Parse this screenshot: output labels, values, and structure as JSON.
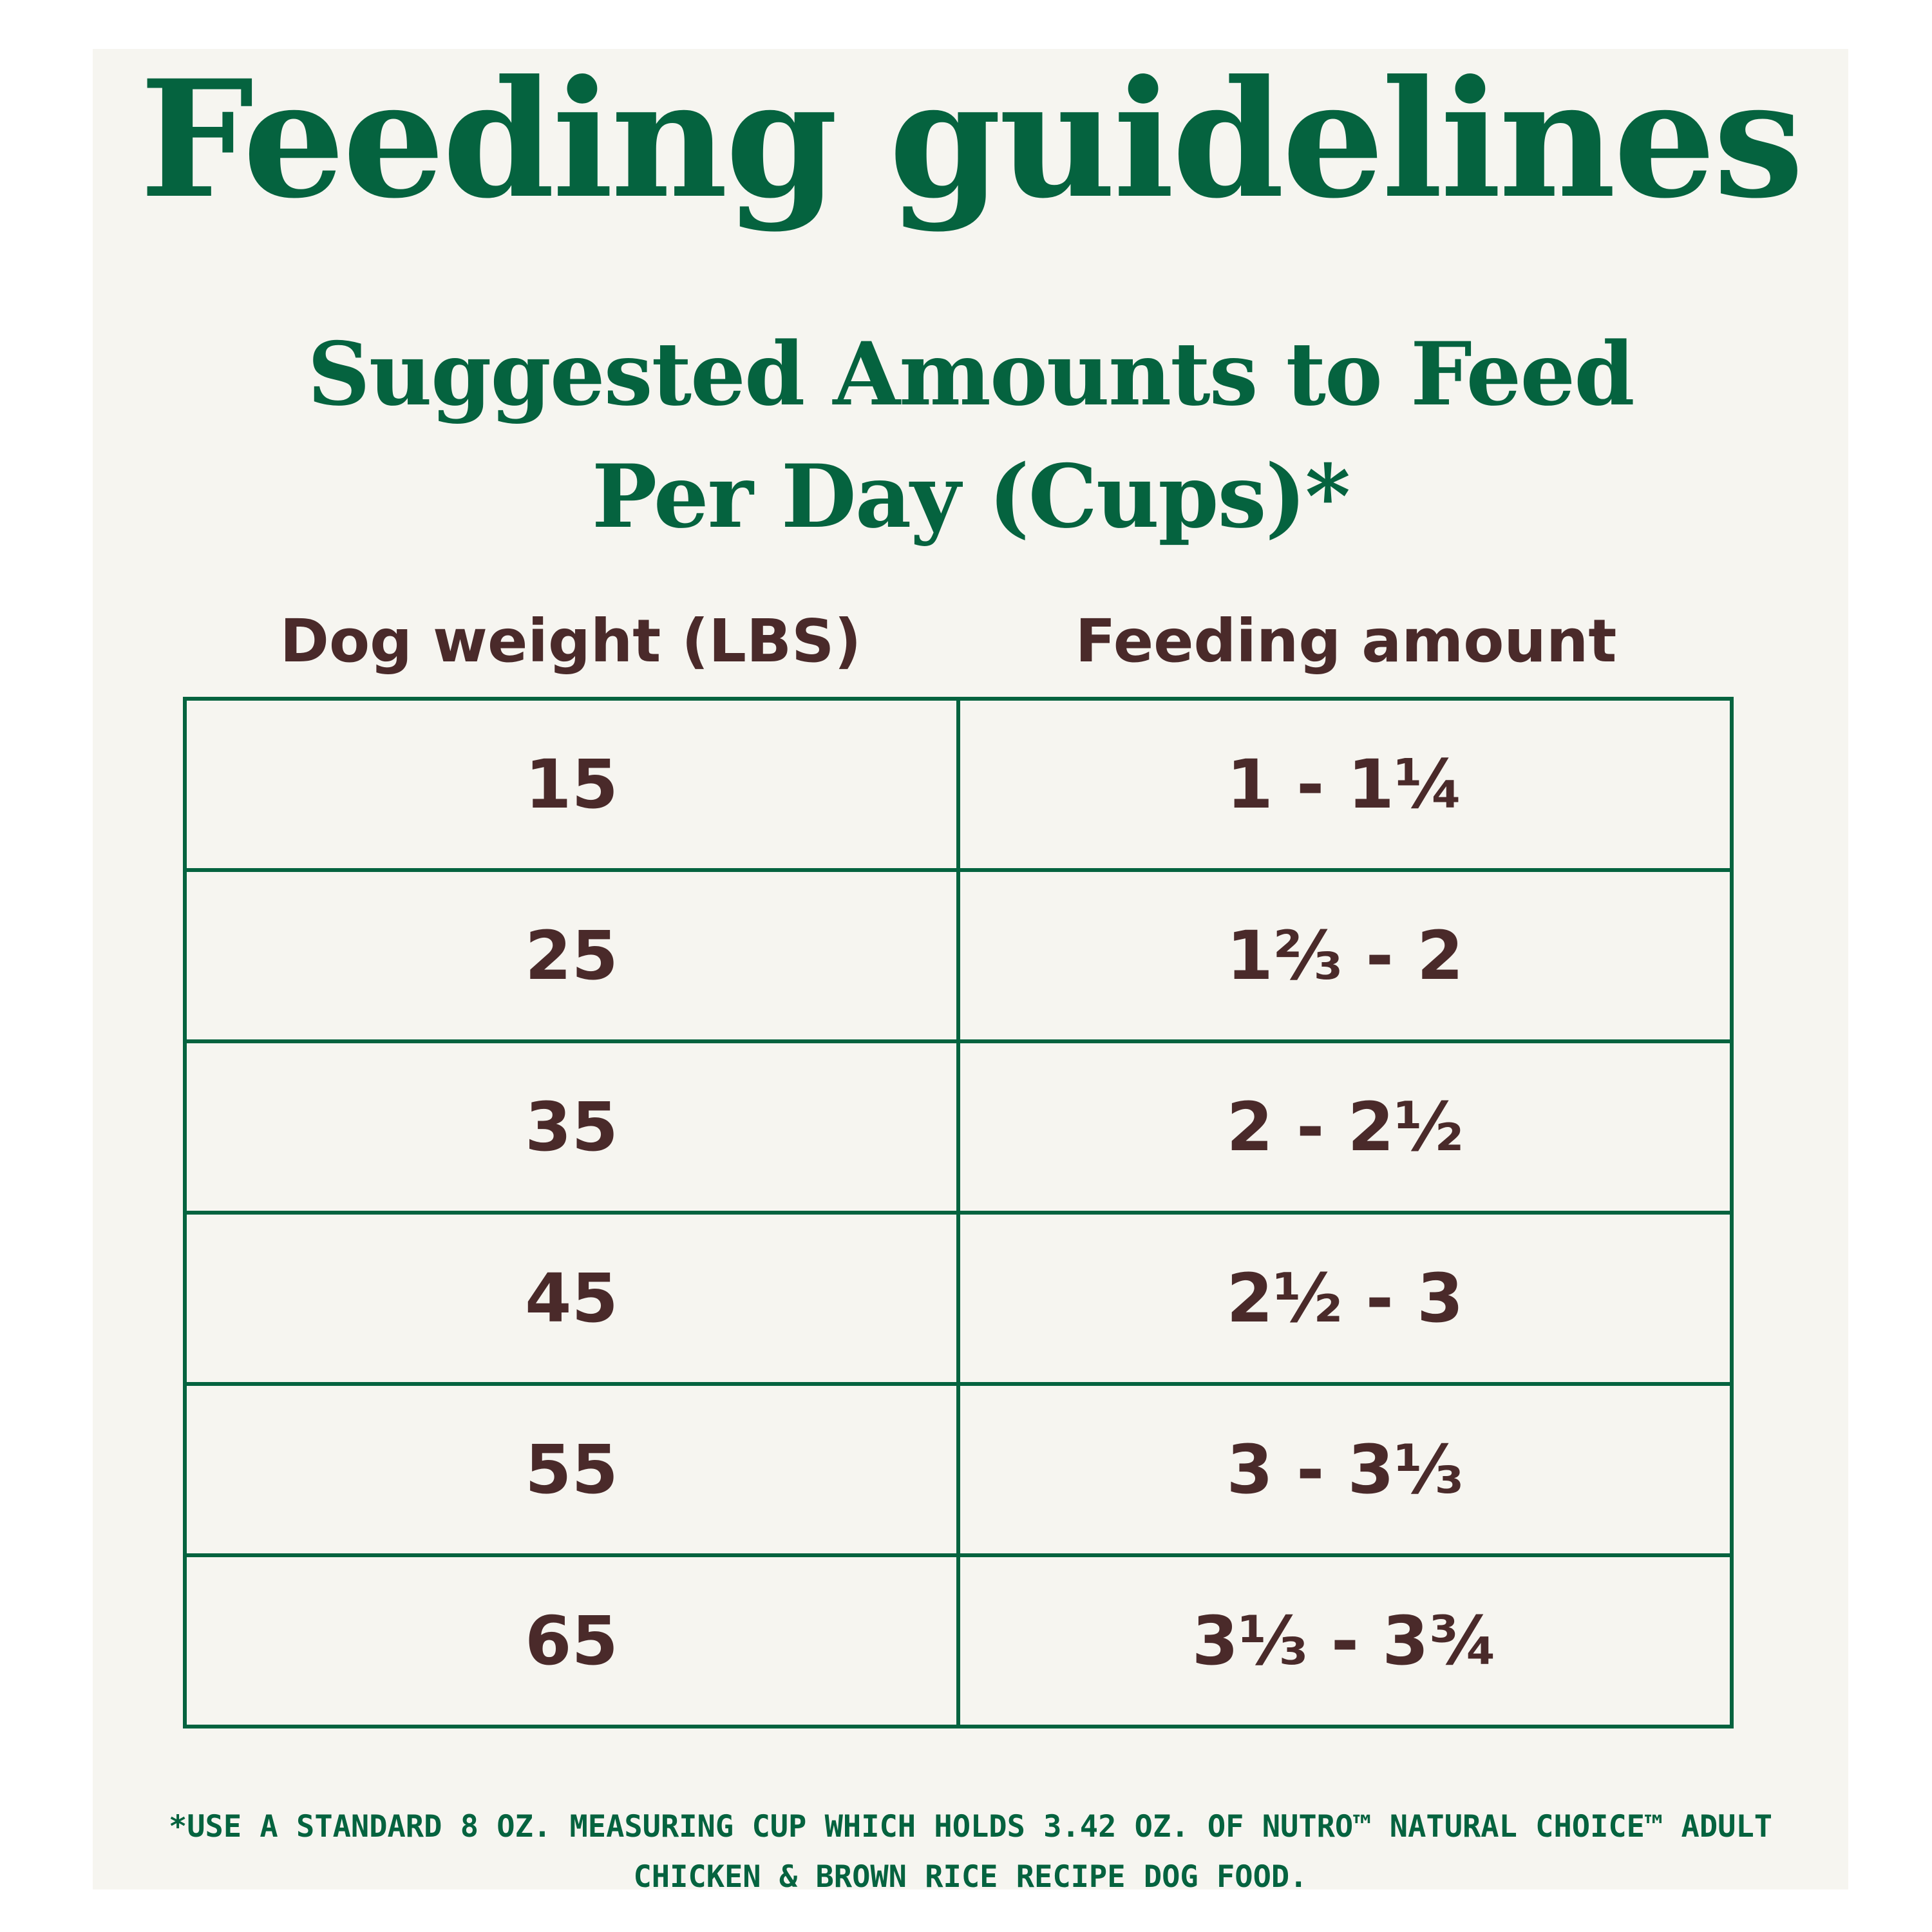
{
  "colors": {
    "brand_green": "#05633f",
    "text_brown": "#4a2a2a",
    "background": "#f6f5f0"
  },
  "heading": {
    "title": "Feeding guidelines",
    "subtitle_line1": "Suggested Amounts to Feed",
    "subtitle_line2": "Per Day (Cups)*"
  },
  "table": {
    "headers": [
      "Dog weight (LBS)",
      "Feeding amount"
    ],
    "rows": [
      {
        "weight": "15",
        "amount": "1 - 1¼"
      },
      {
        "weight": "25",
        "amount": "1⅔ - 2"
      },
      {
        "weight": "35",
        "amount": "2 - 2½"
      },
      {
        "weight": "45",
        "amount": "2½ - 3"
      },
      {
        "weight": "55",
        "amount": "3 - 3⅓"
      },
      {
        "weight": "65",
        "amount": "3⅓ - 3¾"
      }
    ]
  },
  "footnote": {
    "line1": "*USE A STANDARD 8 OZ. MEASURING CUP WHICH HOLDS 3.42 OZ. OF NUTRO™ NATURAL CHOICE™ ADULT",
    "line2": "CHICKEN & BROWN RICE RECIPE DOG FOOD."
  }
}
